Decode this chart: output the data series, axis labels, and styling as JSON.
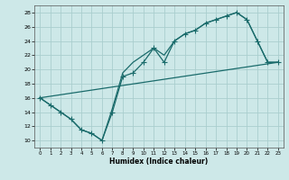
{
  "title": "",
  "xlabel": "Humidex (Indice chaleur)",
  "xlim": [
    -0.5,
    23.5
  ],
  "ylim": [
    9,
    29
  ],
  "yticks": [
    10,
    12,
    14,
    16,
    18,
    20,
    22,
    24,
    26,
    28
  ],
  "xticks": [
    0,
    1,
    2,
    3,
    4,
    5,
    6,
    7,
    8,
    9,
    10,
    11,
    12,
    13,
    14,
    15,
    16,
    17,
    18,
    19,
    20,
    21,
    22,
    23
  ],
  "bg_color": "#cde8e8",
  "grid_color": "#aacece",
  "line_color": "#1a6b6b",
  "line1_x": [
    0,
    1,
    2,
    3,
    4,
    5,
    6,
    7,
    8,
    9,
    10,
    11,
    12,
    13,
    14,
    15,
    16,
    17,
    18,
    19,
    20,
    21,
    22,
    23
  ],
  "line1_y": [
    16,
    15,
    14,
    13,
    11.5,
    11,
    10,
    14,
    19,
    19.5,
    21,
    23,
    21,
    24,
    25,
    25.5,
    26.5,
    27,
    27.5,
    28,
    27,
    24,
    21,
    21
  ],
  "line2_x": [
    0,
    1,
    2,
    3,
    4,
    5,
    6,
    7,
    8,
    9,
    10,
    11,
    12,
    13,
    14,
    15,
    16,
    17,
    18,
    19,
    20,
    21,
    22,
    23
  ],
  "line2_y": [
    16,
    15,
    14,
    13,
    11.5,
    11,
    10,
    14.5,
    19.5,
    21,
    22,
    23,
    22,
    24,
    25,
    25.5,
    26.5,
    27,
    27.5,
    28,
    27,
    24,
    21,
    21
  ],
  "line3_x": [
    0,
    23
  ],
  "line3_y": [
    16,
    21
  ],
  "marker_size": 4,
  "line_width": 0.9
}
